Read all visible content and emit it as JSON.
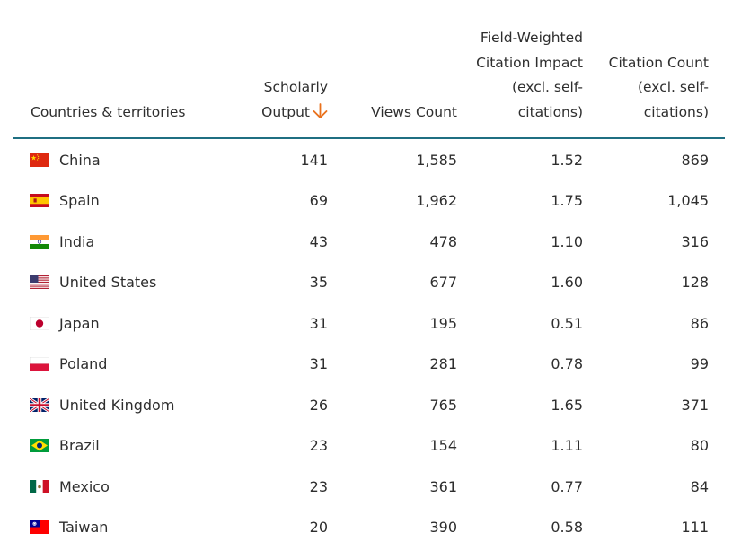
{
  "colors": {
    "header_rule": "#1f6f82",
    "sort_arrow": "#e9711c",
    "text": "#2e2e2e"
  },
  "table": {
    "headers": {
      "country": "Countries & territories",
      "output": [
        "Scholarly",
        "Output"
      ],
      "views": "Views Count",
      "fwci": [
        "Field-Weighted",
        "Citation Impact",
        "(excl. self-",
        "citations)"
      ],
      "cites": [
        "Citation Count",
        "(excl. self-",
        "citations)"
      ]
    },
    "sort_icon": "arrow-down-icon",
    "rows": [
      {
        "flag": "flag-china-icon",
        "country": "China",
        "output": "141",
        "views": "1,585",
        "fwci": "1.52",
        "cites": "869"
      },
      {
        "flag": "flag-spain-icon",
        "country": "Spain",
        "output": "69",
        "views": "1,962",
        "fwci": "1.75",
        "cites": "1,045"
      },
      {
        "flag": "flag-india-icon",
        "country": "India",
        "output": "43",
        "views": "478",
        "fwci": "1.10",
        "cites": "316"
      },
      {
        "flag": "flag-united-states-icon",
        "country": "United States",
        "output": "35",
        "views": "677",
        "fwci": "1.60",
        "cites": "128"
      },
      {
        "flag": "flag-japan-icon",
        "country": "Japan",
        "output": "31",
        "views": "195",
        "fwci": "0.51",
        "cites": "86"
      },
      {
        "flag": "flag-poland-icon",
        "country": "Poland",
        "output": "31",
        "views": "281",
        "fwci": "0.78",
        "cites": "99"
      },
      {
        "flag": "flag-united-kingdom-icon",
        "country": "United Kingdom",
        "output": "26",
        "views": "765",
        "fwci": "1.65",
        "cites": "371"
      },
      {
        "flag": "flag-brazil-icon",
        "country": "Brazil",
        "output": "23",
        "views": "154",
        "fwci": "1.11",
        "cites": "80"
      },
      {
        "flag": "flag-mexico-icon",
        "country": "Mexico",
        "output": "23",
        "views": "361",
        "fwci": "0.77",
        "cites": "84"
      },
      {
        "flag": "flag-taiwan-icon",
        "country": "Taiwan",
        "output": "20",
        "views": "390",
        "fwci": "0.58",
        "cites": "111"
      }
    ]
  }
}
